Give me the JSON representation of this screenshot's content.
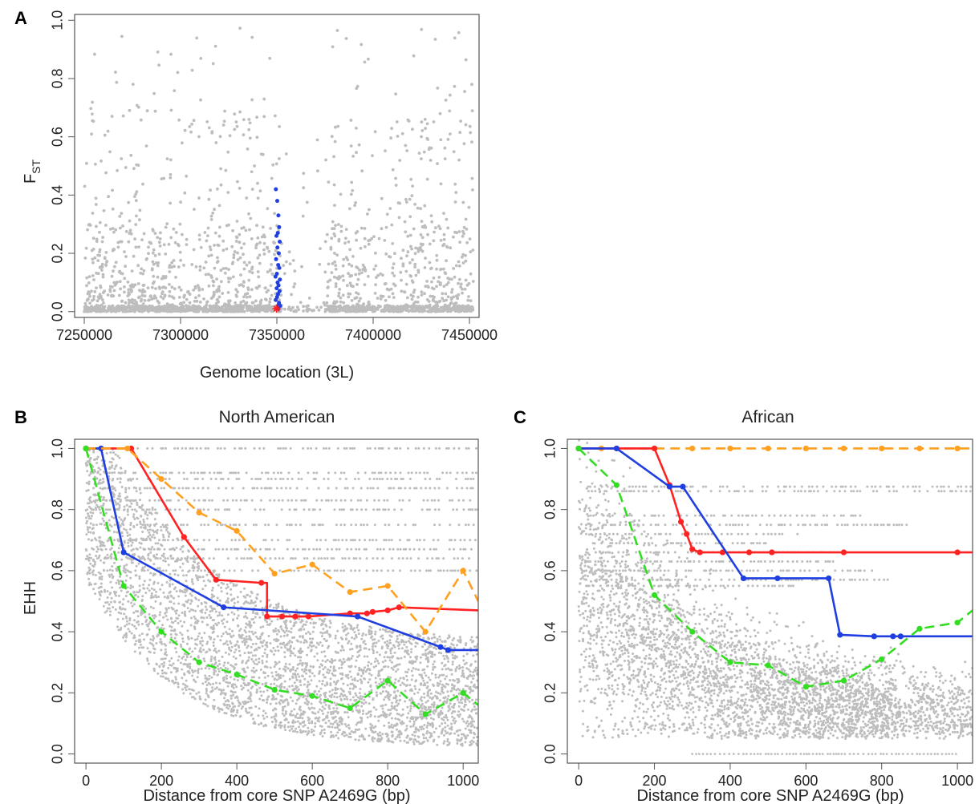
{
  "chart_data": [
    {
      "panel": "A",
      "type": "scatter",
      "title": "",
      "xlabel": "Genome location (3L)",
      "ylabel": "F",
      "ylabel_sub": "ST",
      "xlim": [
        7245000,
        7455000
      ],
      "ylim": [
        -0.02,
        1.02
      ],
      "xticks": [
        7250000,
        7300000,
        7350000,
        7400000,
        7450000
      ],
      "xtick_labels": [
        "7250000",
        "7300000",
        "7350000",
        "7400000",
        "7450000"
      ],
      "yticks": [
        0.0,
        0.2,
        0.4,
        0.6,
        0.8,
        1.0
      ],
      "ytick_labels": [
        "0.0",
        "0.2",
        "0.4",
        "0.6",
        "0.8",
        "1.0"
      ],
      "background_color": "#bdbdbd",
      "highlight_color": "#1f3fe0",
      "core_color": "#ff2020",
      "highlight_points": [
        [
          7349500,
          0.42
        ],
        [
          7350200,
          0.38
        ],
        [
          7350800,
          0.33
        ],
        [
          7351200,
          0.29
        ],
        [
          7350500,
          0.27
        ],
        [
          7349800,
          0.26
        ],
        [
          7351500,
          0.24
        ],
        [
          7350300,
          0.22
        ],
        [
          7351000,
          0.2
        ],
        [
          7349600,
          0.18
        ],
        [
          7350700,
          0.16
        ],
        [
          7351300,
          0.15
        ],
        [
          7350000,
          0.13
        ],
        [
          7349300,
          0.12
        ],
        [
          7351600,
          0.11
        ],
        [
          7350400,
          0.1
        ],
        [
          7350900,
          0.09
        ],
        [
          7349900,
          0.08
        ],
        [
          7351400,
          0.07
        ],
        [
          7350600,
          0.06
        ],
        [
          7350100,
          0.05
        ],
        [
          7349400,
          0.04
        ],
        [
          7351100,
          0.03
        ],
        [
          7350500,
          0.02
        ],
        [
          7351700,
          0.02
        ],
        [
          7349700,
          0.01
        ],
        [
          7350800,
          0.01
        ]
      ],
      "core_point": [
        7349800,
        0.01
      ]
    },
    {
      "panel": "B",
      "type": "line",
      "title": "North American",
      "xlabel": "Distance from core SNP A2469G (bp)",
      "ylabel": "EHH",
      "xlim": [
        -30,
        1040
      ],
      "ylim": [
        -0.03,
        1.03
      ],
      "xticks": [
        0,
        200,
        400,
        600,
        800,
        1000
      ],
      "xtick_labels": [
        "0",
        "200",
        "400",
        "600",
        "800",
        "1000"
      ],
      "yticks": [
        0.0,
        0.2,
        0.4,
        0.6,
        0.8,
        1.0
      ],
      "ytick_labels": [
        "0.0",
        "0.2",
        "0.4",
        "0.6",
        "0.8",
        "1.0"
      ],
      "series": [
        {
          "color": "#ff2222",
          "dashed": false,
          "step": true,
          "x": [
            0,
            120,
            260,
            345,
            465,
            480,
            520,
            555,
            590,
            700,
            745,
            760,
            800,
            830,
            1040
          ],
          "y": [
            1.0,
            1.0,
            0.71,
            0.57,
            0.56,
            0.45,
            0.45,
            0.45,
            0.45,
            0.46,
            0.46,
            0.465,
            0.47,
            0.48,
            0.47
          ]
        },
        {
          "color": "#1f3fe0",
          "dashed": false,
          "step": false,
          "x": [
            0,
            40,
            100,
            365,
            720,
            940,
            960,
            1040
          ],
          "y": [
            1.0,
            1.0,
            0.66,
            0.48,
            0.45,
            0.35,
            0.34,
            0.34
          ]
        },
        {
          "color": "#ffa020",
          "dashed": true,
          "step": false,
          "x": [
            0,
            110,
            200,
            300,
            400,
            500,
            600,
            700,
            800,
            900,
            1000,
            1040
          ],
          "y": [
            1.0,
            1.0,
            0.9,
            0.79,
            0.73,
            0.59,
            0.62,
            0.53,
            0.55,
            0.4,
            0.6,
            0.5
          ]
        },
        {
          "color": "#33dd22",
          "dashed": true,
          "step": false,
          "x": [
            0,
            100,
            200,
            300,
            400,
            500,
            600,
            700,
            800,
            900,
            1000,
            1040
          ],
          "y": [
            1.0,
            0.55,
            0.4,
            0.3,
            0.26,
            0.21,
            0.19,
            0.15,
            0.24,
            0.13,
            0.2,
            0.16
          ]
        }
      ]
    },
    {
      "panel": "C",
      "type": "line",
      "title": "African",
      "xlabel": "Distance from core SNP A2469G (bp)",
      "ylabel": "",
      "xlim": [
        -30,
        1040
      ],
      "ylim": [
        -0.03,
        1.03
      ],
      "xticks": [
        0,
        200,
        400,
        600,
        800,
        1000
      ],
      "xtick_labels": [
        "0",
        "200",
        "400",
        "600",
        "800",
        "1000"
      ],
      "yticks": [
        0.0,
        0.2,
        0.4,
        0.6,
        0.8,
        1.0
      ],
      "ytick_labels": [
        "0.0",
        "0.2",
        "0.4",
        "0.6",
        "0.8",
        "1.0"
      ],
      "series": [
        {
          "color": "#ffa020",
          "dashed": true,
          "step": false,
          "x": [
            0,
            60,
            100,
            200,
            300,
            400,
            500,
            600,
            700,
            800,
            900,
            1000,
            1040
          ],
          "y": [
            1.0,
            1.0,
            1.0,
            1.0,
            1.0,
            1.0,
            1.0,
            1.0,
            1.0,
            1.0,
            1.0,
            1.0,
            1.0
          ]
        },
        {
          "color": "#ff2222",
          "dashed": false,
          "step": false,
          "x": [
            0,
            200,
            240,
            270,
            285,
            300,
            320,
            380,
            450,
            510,
            700,
            1000,
            1040
          ],
          "y": [
            1.0,
            1.0,
            0.88,
            0.76,
            0.72,
            0.67,
            0.66,
            0.66,
            0.66,
            0.66,
            0.66,
            0.66,
            0.66
          ]
        },
        {
          "color": "#1f3fe0",
          "dashed": false,
          "step": true,
          "x": [
            0,
            100,
            240,
            275,
            435,
            525,
            660,
            690,
            780,
            830,
            850,
            1040
          ],
          "y": [
            1.0,
            1.0,
            0.875,
            0.875,
            0.575,
            0.575,
            0.575,
            0.39,
            0.385,
            0.385,
            0.385,
            0.385
          ]
        },
        {
          "color": "#33dd22",
          "dashed": true,
          "step": false,
          "x": [
            0,
            100,
            200,
            300,
            400,
            500,
            600,
            700,
            800,
            900,
            1000,
            1040
          ],
          "y": [
            1.0,
            0.88,
            0.52,
            0.4,
            0.3,
            0.29,
            0.22,
            0.24,
            0.31,
            0.41,
            0.43,
            0.47
          ]
        }
      ]
    }
  ]
}
